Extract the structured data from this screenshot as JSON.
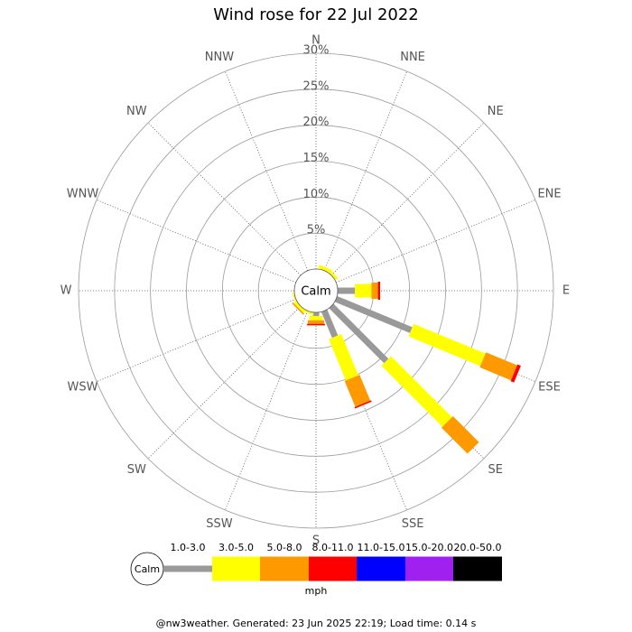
{
  "chart_data": {
    "type": "windrose",
    "title": "Wind rose for 22 Jul 2022",
    "calm_label": "Calm",
    "units": "mph",
    "footer": "@nw3weather. Generated: 23 Jun 2025 22:19; Load time: 0.14 s",
    "categories": [
      "N",
      "NNE",
      "NE",
      "ENE",
      "E",
      "ESE",
      "SE",
      "SSE",
      "S",
      "SSW",
      "SW",
      "WSW",
      "W",
      "WNW",
      "NW",
      "NNW"
    ],
    "rlim": [
      0,
      30
    ],
    "rticks": [
      {
        "value": 5,
        "label": "5%"
      },
      {
        "value": 10,
        "label": "10%"
      },
      {
        "value": 15,
        "label": "15%"
      },
      {
        "value": 20,
        "label": "20%"
      },
      {
        "value": 25,
        "label": "25%"
      },
      {
        "value": 30,
        "label": "30%"
      }
    ],
    "series": [
      {
        "name": "1.0-3.0",
        "color": "#999999",
        "values": [
          0,
          0,
          0,
          0,
          2.4,
          11.3,
          10.8,
          3.9,
          0.5,
          0,
          0,
          0,
          0,
          0,
          0,
          0
        ]
      },
      {
        "name": "3.0-5.0",
        "color": "#ffff00",
        "values": [
          0,
          0.5,
          0.4,
          0,
          2.3,
          10.8,
          12.0,
          6.2,
          0.6,
          0.3,
          0.4,
          0.2,
          0,
          0,
          0,
          0
        ]
      },
      {
        "name": "5.0-8.0",
        "color": "#ff9900",
        "values": [
          0,
          0,
          0,
          0,
          0.9,
          4.7,
          5.1,
          3.9,
          0.5,
          0,
          0.2,
          0,
          0,
          0,
          0,
          0
        ]
      },
      {
        "name": "8.0-11.0",
        "color": "#ff0000",
        "values": [
          0,
          0,
          0,
          0,
          0.3,
          0.5,
          0,
          0.2,
          0.2,
          0,
          0,
          0,
          0,
          0,
          0,
          0
        ]
      },
      {
        "name": "11.0-15.0",
        "color": "#0000ff",
        "values": [
          0,
          0,
          0,
          0,
          0,
          0,
          0,
          0,
          0,
          0,
          0,
          0,
          0,
          0,
          0,
          0
        ]
      },
      {
        "name": "15.0-20.0",
        "color": "#a020f0",
        "values": [
          0,
          0,
          0,
          0,
          0,
          0,
          0,
          0,
          0,
          0,
          0,
          0,
          0,
          0,
          0,
          0
        ]
      },
      {
        "name": "20.0-50.0",
        "color": "#000000",
        "values": [
          0,
          0,
          0,
          0,
          0,
          0,
          0,
          0,
          0,
          0,
          0,
          0,
          0,
          0,
          0,
          0
        ]
      }
    ]
  }
}
